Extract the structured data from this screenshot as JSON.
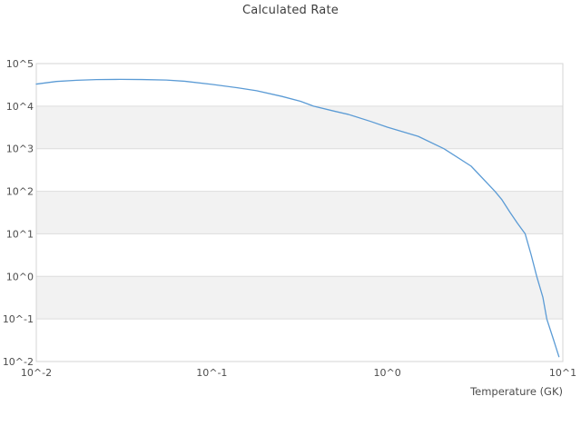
{
  "chart_data": {
    "type": "line",
    "title": "Calculated Rate",
    "xlabel": "Temperature (GK)",
    "ylabel": "",
    "x_scale": "log",
    "y_scale": "log",
    "xlim": [
      0.01,
      10
    ],
    "ylim": [
      0.01,
      100000
    ],
    "x_tick_values": [
      0.01,
      0.1,
      1,
      10
    ],
    "x_tick_labels": [
      "10^-2",
      "10^-1",
      "10^0",
      "10^1"
    ],
    "y_tick_values": [
      100000,
      10000,
      1000,
      100,
      10,
      1,
      0.1,
      0.01
    ],
    "y_tick_labels": [
      "10^5",
      "10^4",
      "10^3",
      "10^2",
      "10^1",
      "10^0",
      "10^-1",
      "10^-2"
    ],
    "grid": "horizontal-gridlines-with-alternating-bands",
    "legend": "none",
    "series": [
      {
        "name": "calculated-rate",
        "color": "#5b9bd5",
        "points": [
          [
            0.01,
            33000
          ],
          [
            0.013,
            38000
          ],
          [
            0.017,
            40500
          ],
          [
            0.022,
            42000
          ],
          [
            0.03,
            42500
          ],
          [
            0.04,
            42200
          ],
          [
            0.055,
            41000
          ],
          [
            0.07,
            38500
          ],
          [
            0.1,
            32500
          ],
          [
            0.14,
            27000
          ],
          [
            0.18,
            23000
          ],
          [
            0.25,
            17000
          ],
          [
            0.32,
            13000
          ],
          [
            0.38,
            10000
          ],
          [
            0.5,
            7600
          ],
          [
            0.6,
            6400
          ],
          [
            0.8,
            4400
          ],
          [
            1.0,
            3200
          ],
          [
            1.5,
            1950
          ],
          [
            2.1,
            1000
          ],
          [
            3.0,
            390
          ],
          [
            4.1,
            100
          ],
          [
            4.5,
            63
          ],
          [
            5.0,
            32
          ],
          [
            5.5,
            18
          ],
          [
            6.1,
            10
          ],
          [
            6.6,
            3.2
          ],
          [
            7.1,
            1.0
          ],
          [
            7.7,
            0.32
          ],
          [
            8.1,
            0.1
          ],
          [
            8.8,
            0.035
          ],
          [
            9.5,
            0.013
          ]
        ]
      }
    ]
  },
  "colors": {
    "line": "#5b9bd5",
    "band": "#f2f2f2",
    "gridline": "#dddddd",
    "border": "#d4d4d4",
    "tick_text": "#4d4d4d",
    "title_text": "#3d3d3d",
    "background": "#ffffff"
  }
}
